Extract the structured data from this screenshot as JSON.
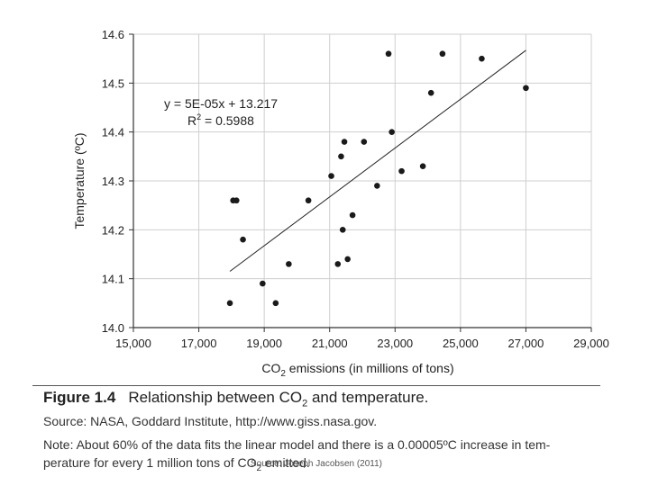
{
  "chart_data": {
    "type": "scatter",
    "xlabel_main": "CO",
    "xlabel_sub": "2",
    "xlabel_rest": " emissions (in millions of tons)",
    "ylabel": "Temperature (ºC)",
    "xlim": [
      15000,
      29000
    ],
    "ylim": [
      14.0,
      14.6
    ],
    "x_ticks": [
      15000,
      17000,
      19000,
      21000,
      23000,
      25000,
      27000,
      29000
    ],
    "x_tick_labels": [
      "15,000",
      "17,000",
      "19,000",
      "21,000",
      "23,000",
      "25,000",
      "27,000",
      "29,000"
    ],
    "y_ticks": [
      14.0,
      14.1,
      14.2,
      14.3,
      14.4,
      14.5,
      14.6
    ],
    "y_tick_labels": [
      "14.0",
      "14.1",
      "14.2",
      "14.3",
      "14.4",
      "14.5",
      "14.6"
    ],
    "grid": true,
    "points": [
      {
        "x": 18050,
        "y": 14.26
      },
      {
        "x": 18150,
        "y": 14.26
      },
      {
        "x": 18350,
        "y": 14.18
      },
      {
        "x": 17950,
        "y": 14.05
      },
      {
        "x": 18950,
        "y": 14.09
      },
      {
        "x": 19350,
        "y": 14.05
      },
      {
        "x": 19750,
        "y": 14.13
      },
      {
        "x": 20350,
        "y": 14.26
      },
      {
        "x": 21050,
        "y": 14.31
      },
      {
        "x": 21250,
        "y": 14.13
      },
      {
        "x": 21350,
        "y": 14.35
      },
      {
        "x": 21400,
        "y": 14.2
      },
      {
        "x": 21450,
        "y": 14.38
      },
      {
        "x": 21550,
        "y": 14.14
      },
      {
        "x": 21700,
        "y": 14.23
      },
      {
        "x": 22050,
        "y": 14.38
      },
      {
        "x": 22450,
        "y": 14.29
      },
      {
        "x": 22800,
        "y": 14.56
      },
      {
        "x": 22900,
        "y": 14.4
      },
      {
        "x": 23200,
        "y": 14.32
      },
      {
        "x": 23850,
        "y": 14.33
      },
      {
        "x": 24100,
        "y": 14.48
      },
      {
        "x": 24450,
        "y": 14.56
      },
      {
        "x": 25650,
        "y": 14.55
      },
      {
        "x": 27000,
        "y": 14.49
      }
    ],
    "trendline": {
      "x1": 17950,
      "y1": 14.115,
      "x2": 27000,
      "y2": 14.567
    },
    "equation": "y = 5E-05x + 13.217",
    "r2_prefix": "R",
    "r2_sup": "2",
    "r2_value": " = 0.5988"
  },
  "caption": {
    "figure_label": "Figure 1.4",
    "title_prefix": "Relationship between CO",
    "title_sub": "2",
    "title_suffix": " and temperature.",
    "source": "Source: NASA, Goddard Institute, http://www.giss.nasa.gov.",
    "note_line1": "Note: About 60% of the data fits the linear model and there is a 0.00005ºC increase in tem-",
    "note_line2_prefix": "perature for every 1 million tons of CO",
    "note_line2_sub": "2",
    "note_line2_suffix": " emitted.",
    "credit": "Source: Joseph Jacobsen (2011)"
  },
  "colors": {
    "point": "#1a1a1a",
    "line": "#222222",
    "grid": "#cfcfcf",
    "axis": "#333333"
  }
}
